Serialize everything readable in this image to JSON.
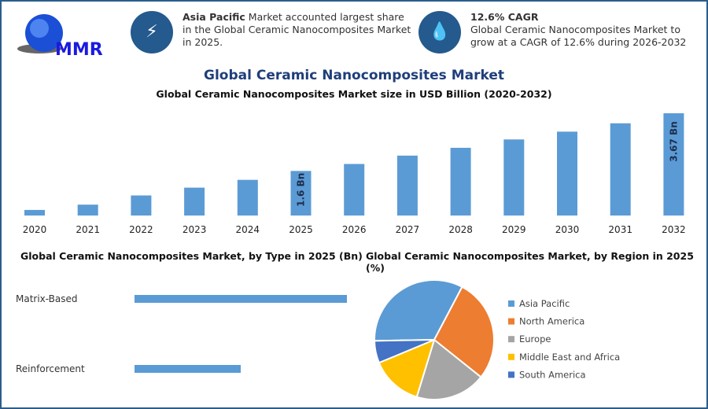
{
  "logo_text": "MMR",
  "info1": {
    "bold": "Asia Pacific",
    "text": " Market accounted largest share in the Global Ceramic Nanocomposites Market in 2025.",
    "icon": "lightning-icon"
  },
  "info2": {
    "bold": "12.6% CAGR",
    "text": "Global Ceramic Nanocomposites Market to grow at a CAGR of 12.6% during 2026-2032",
    "icon": "drop-icon"
  },
  "main_title": "Global Ceramic Nanocomposites Market",
  "colors": {
    "bar": "#5b9bd5",
    "title": "#1f3e7a"
  },
  "chart_data": [
    {
      "type": "bar",
      "title": "Global Ceramic Nanocomposites Market size in USD Billion (2020-2032)",
      "categories": [
        "2020",
        "2021",
        "2022",
        "2023",
        "2024",
        "2025",
        "2026",
        "2027",
        "2028",
        "2029",
        "2030",
        "2031",
        "2032"
      ],
      "values": [
        0.2,
        0.39,
        0.72,
        1.0,
        1.28,
        1.6,
        1.85,
        2.15,
        2.43,
        2.73,
        3.01,
        3.31,
        3.67
      ],
      "data_labels": {
        "2025": "1.6 Bn",
        "2032": "3.67 Bn"
      }
    },
    {
      "type": "bar",
      "orientation": "horizontal",
      "title": "Global Ceramic Nanocomposites Market, by Type in 2025 (Bn)",
      "categories": [
        "Matrix-Based",
        "Reinforcement"
      ],
      "values": [
        1.0,
        0.5
      ]
    },
    {
      "type": "pie",
      "title": "Global Ceramic Nanocomposites Market, by Region in 2025 (%)",
      "categories": [
        "Asia Pacific",
        "North America",
        "Europe",
        "Middle East and Africa",
        "South America"
      ],
      "values": [
        33,
        28,
        19,
        14,
        6
      ],
      "colors": [
        "#5b9bd5",
        "#ed7d31",
        "#a5a5a5",
        "#ffc000",
        "#4472c4"
      ],
      "legend": "right"
    }
  ]
}
